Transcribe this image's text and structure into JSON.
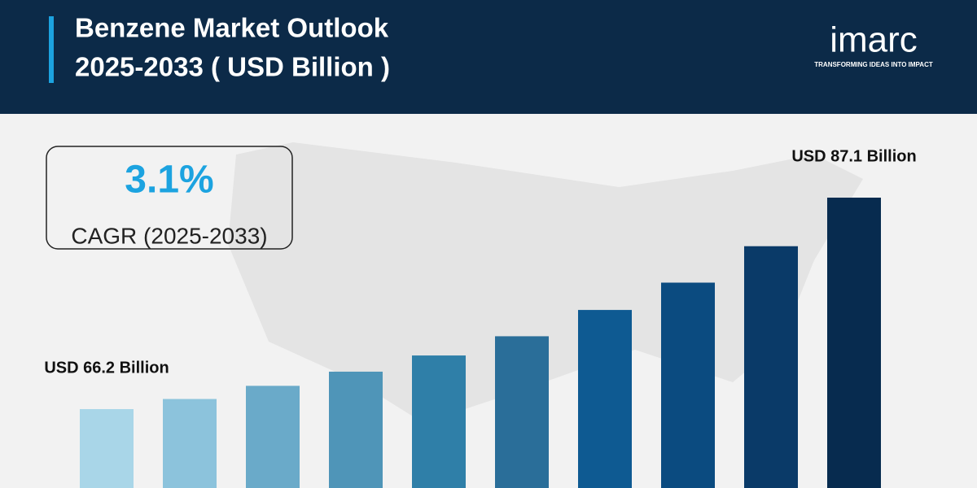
{
  "header": {
    "title_lines": [
      "Benzene Market Outlook",
      "2025-2033 ( USD Billion )"
    ]
  },
  "logo": {
    "name": "imarc",
    "tagline": "TRANSFORMING IDEAS INTO IMPACT"
  },
  "cagr": {
    "value": "3.1%",
    "label": "CAGR (2025-2033)"
  },
  "chart_data": {
    "type": "bar",
    "values": [
      66.2,
      67.2,
      68.5,
      69.9,
      71.5,
      73.4,
      76.0,
      78.7,
      82.3,
      87.1
    ],
    "value_labels": [
      "USD 66.2 Billion",
      null,
      null,
      null,
      null,
      null,
      null,
      null,
      null,
      "USD 87.1 Billion"
    ],
    "colors": [
      "#a9d6e8",
      "#8cc3dc",
      "#6aaac9",
      "#4f95b8",
      "#2f7fa8",
      "#2a6e99",
      "#0e5a92",
      "#0b4b80",
      "#0a3a68",
      "#072b4f"
    ]
  }
}
